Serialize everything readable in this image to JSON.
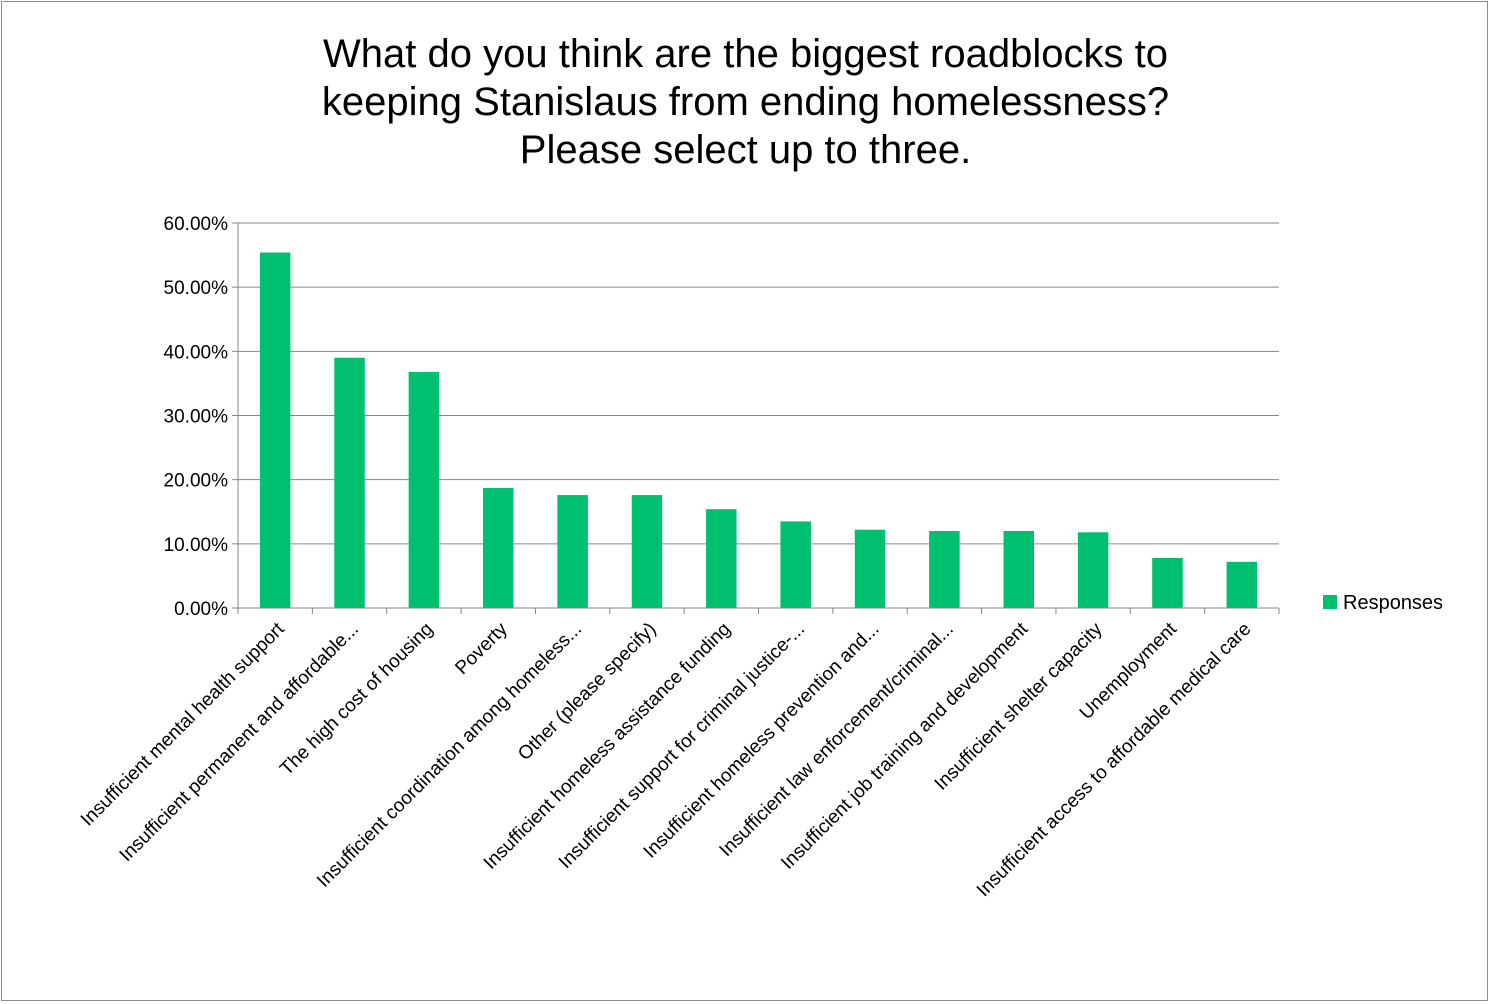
{
  "chart_data": {
    "type": "bar",
    "title": [
      "What do you think are the biggest roadblocks to",
      "keeping Stanislaus from ending homelessness?",
      "Please select up to three."
    ],
    "categories": [
      "Insufficient mental health support",
      "Insufficient permanent and affordable...",
      "The high cost of housing",
      "Poverty",
      "Insufficient coordination among homeless...",
      "Other (please specify)",
      "Insufficient homeless assistance funding",
      "Insufficient support for criminal justice-...",
      "Insufficient homeless prevention and...",
      "Insufficient law enforcement/criminal...",
      "Insufficient job training and development",
      "Insufficient shelter capacity",
      "Unemployment",
      "Insufficient access to affordable medical care"
    ],
    "series": [
      {
        "name": "Responses",
        "values": [
          55.4,
          39.0,
          36.8,
          18.7,
          17.6,
          17.6,
          15.4,
          13.5,
          12.2,
          12.0,
          12.0,
          11.8,
          7.8,
          7.2
        ],
        "color": "#00bf6f"
      }
    ],
    "yticks": [
      "0.00%",
      "10.00%",
      "20.00%",
      "30.00%",
      "40.00%",
      "50.00%",
      "60.00%"
    ],
    "ylim": [
      0,
      60
    ],
    "xlabel": "",
    "ylabel": "",
    "grid": true,
    "legend": "right"
  }
}
